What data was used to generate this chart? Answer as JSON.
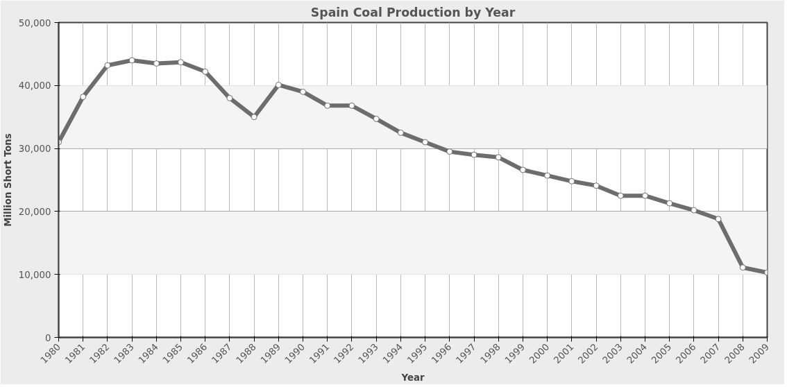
{
  "chart_data": {
    "type": "line",
    "title": "Spain Coal Production by Year",
    "xlabel": "Year",
    "ylabel": "Million Short Tons",
    "categories": [
      "1980",
      "1981",
      "1982",
      "1983",
      "1984",
      "1985",
      "1986",
      "1987",
      "1988",
      "1989",
      "1990",
      "1991",
      "1992",
      "1993",
      "1994",
      "1995",
      "1996",
      "1997",
      "1998",
      "1999",
      "2000",
      "2001",
      "2002",
      "2003",
      "2004",
      "2005",
      "2006",
      "2007",
      "2008",
      "2009"
    ],
    "series": [
      {
        "color": "#6d6d6d",
        "values": [
          31000,
          38200,
          43200,
          44000,
          43500,
          43700,
          42200,
          38000,
          35000,
          40100,
          39000,
          36800,
          36800,
          34700,
          32500,
          31000,
          29500,
          29000,
          28600,
          26600,
          25700,
          24800,
          24100,
          22500,
          22500,
          21300,
          20200,
          18800,
          11100,
          10300
        ]
      }
    ],
    "ylim": [
      0,
      50000
    ],
    "yticks": [
      {
        "value": 0,
        "label": "0"
      },
      {
        "value": 10000,
        "label": "10,000"
      },
      {
        "value": 20000,
        "label": "20,000"
      },
      {
        "value": 30000,
        "label": "30,000"
      },
      {
        "value": 40000,
        "label": "40,000"
      },
      {
        "value": 50000,
        "label": "50,000"
      }
    ],
    "grid": true,
    "marker": "circle",
    "line_style": "solid"
  }
}
